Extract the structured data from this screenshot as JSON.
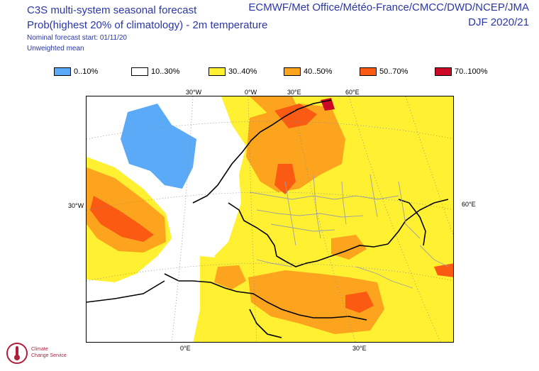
{
  "header": {
    "title_line1": "C3S multi-system seasonal forecast",
    "title_line2": "Prob(highest 20% of climatology) - 2m temperature",
    "title_line3": "Nominal forecast start: 01/11/20",
    "title_line4": "Unweighted mean",
    "source": "ECMWF/Met Office/Météo-France/CMCC/DWD/NCEP/JMA",
    "season": "DJF 2020/21"
  },
  "legend": [
    {
      "label": "0..10%",
      "color": "#5aaaf8"
    },
    {
      "label": "10..30%",
      "color": "#ffffff"
    },
    {
      "label": "30..40%",
      "color": "#fff131"
    },
    {
      "label": "40..50%",
      "color": "#fda41f"
    },
    {
      "label": "50..70%",
      "color": "#fb5a12"
    },
    {
      "label": "70..100%",
      "color": "#cc0a28"
    }
  ],
  "coordinates": {
    "lon_top_1": "30°W",
    "lon_top_2": "0°W",
    "lon_top_3": "30°E",
    "lon_top_4": "60°E",
    "lat_left": "30°W",
    "lon_right": "60°E",
    "lon_bottom_1": "0°E",
    "lon_bottom_2": "30°E"
  },
  "logo": {
    "line1": "Climate",
    "line2": "Change Service"
  }
}
